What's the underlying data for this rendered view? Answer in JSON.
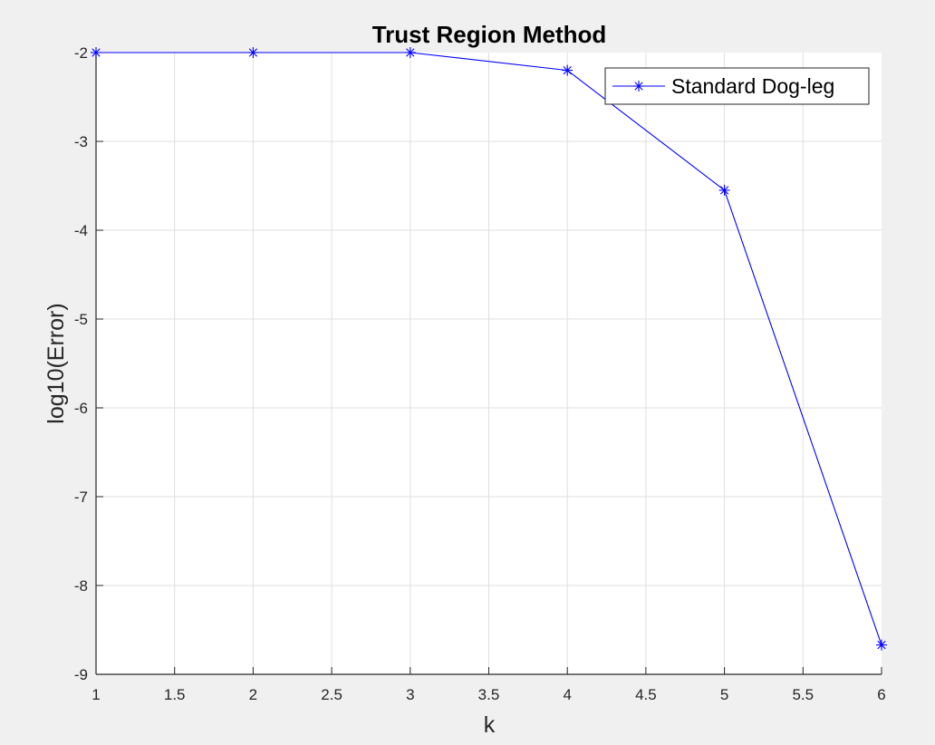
{
  "chart_data": {
    "type": "line",
    "title": "Trust Region Method",
    "xlabel": "k",
    "ylabel": "log10(Error)",
    "xlim": [
      1,
      6
    ],
    "ylim": [
      -9,
      -2
    ],
    "xticks": [
      1,
      1.5,
      2,
      2.5,
      3,
      3.5,
      4,
      4.5,
      5,
      5.5,
      6
    ],
    "xtick_labels": [
      "1",
      "1.5",
      "2",
      "2.5",
      "3",
      "3.5",
      "4",
      "4.5",
      "5",
      "5.5",
      "6"
    ],
    "yticks": [
      -9,
      -8,
      -7,
      -6,
      -5,
      -4,
      -3,
      -2
    ],
    "ytick_labels": [
      "-9",
      "-8",
      "-7",
      "-6",
      "-5",
      "-4",
      "-3",
      "-2"
    ],
    "grid": true,
    "legend_position": "top-right",
    "series": [
      {
        "name": "Standard Dog-leg",
        "color": "#0000ff",
        "marker": "asterisk",
        "x": [
          1,
          2,
          3,
          4,
          5,
          6
        ],
        "y": [
          -2.0,
          -2.0,
          -2.0,
          -2.2,
          -3.55,
          -8.67
        ]
      }
    ]
  }
}
